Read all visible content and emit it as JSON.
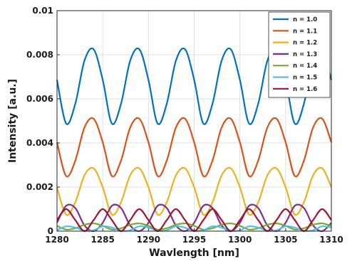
{
  "chart_data": {
    "type": "line",
    "title": "",
    "xlabel": "Wavlength [nm]",
    "ylabel": "Intensity [a.u.]",
    "xlim": [
      1280,
      1310
    ],
    "ylim": [
      0,
      0.01
    ],
    "xticks": [
      "1280",
      "1285",
      "1290",
      "1295",
      "1300",
      "1305",
      "1310"
    ],
    "yticks": [
      "0",
      "0.002",
      "0.004",
      "0.006",
      "0.008",
      "0.01"
    ],
    "grid": true,
    "legend_position": "top-right",
    "x": [
      1280,
      1281,
      1282,
      1283,
      1284,
      1285,
      1286,
      1287,
      1288,
      1289,
      1290,
      1291,
      1292,
      1293,
      1294,
      1295,
      1296,
      1297,
      1298,
      1299,
      1300,
      1301,
      1302,
      1303,
      1304,
      1305,
      1306,
      1307,
      1308,
      1309,
      1310
    ],
    "series": [
      {
        "name": "n = 1.0",
        "color": "#0072BD",
        "values": [
          0.00686,
          0.00488,
          0.00578,
          0.00773,
          0.00825,
          0.00686,
          0.00488,
          0.00578,
          0.00773,
          0.00825,
          0.00686,
          0.00488,
          0.00578,
          0.00773,
          0.00825,
          0.00686,
          0.00488,
          0.00578,
          0.00773,
          0.00825,
          0.00686,
          0.00488,
          0.00578,
          0.00773,
          0.00825,
          0.00686,
          0.00488,
          0.00578,
          0.00773,
          0.00825,
          0.00686
        ]
      },
      {
        "name": "n = 1.1",
        "color": "#D95319",
        "values": [
          0.00403,
          0.0025,
          0.0032,
          0.0047,
          0.0051,
          0.00403,
          0.0025,
          0.0032,
          0.0047,
          0.0051,
          0.00403,
          0.0025,
          0.0032,
          0.0047,
          0.0051,
          0.00403,
          0.0025,
          0.0032,
          0.0047,
          0.0051,
          0.00403,
          0.0025,
          0.0032,
          0.0047,
          0.0051,
          0.00403,
          0.0025,
          0.0032,
          0.0047,
          0.0051,
          0.00403
        ]
      },
      {
        "name": "n = 1.2",
        "color": "#EDB120",
        "values": [
          0.00199,
          0.00075,
          0.00131,
          0.00253,
          0.00285,
          0.00199,
          0.00075,
          0.00131,
          0.00253,
          0.00285,
          0.00199,
          0.00075,
          0.00131,
          0.00253,
          0.00285,
          0.00199,
          0.00075,
          0.00131,
          0.00253,
          0.00285,
          0.00199,
          0.00075,
          0.00131,
          0.00253,
          0.00285,
          0.00199,
          0.00075,
          0.00131,
          0.00253,
          0.00285,
          0.00199
        ]
      },
      {
        "name": "n = 1.3",
        "color": "#7E2F8E",
        "values": [
          0.00038,
          0.00115,
          0.00105,
          0.00026,
          0.0,
          0.00038,
          0.00115,
          0.00105,
          0.00026,
          0.0,
          0.00038,
          0.00115,
          0.00105,
          0.00026,
          0.0,
          0.00038,
          0.00115,
          0.00105,
          0.00026,
          0.0,
          0.00038,
          0.00115,
          0.00105,
          0.00026,
          0.0,
          0.00038,
          0.00115,
          0.00105,
          0.00026,
          0.0,
          0.00038
        ]
      },
      {
        "name": "n = 1.4",
        "color": "#77AC30",
        "values": [
          0.00024,
          7e-05,
          0.00013,
          0.00029,
          0.00035,
          0.00024,
          7e-05,
          0.00013,
          0.00029,
          0.00035,
          0.00024,
          7e-05,
          0.00013,
          0.00029,
          0.00035,
          0.00024,
          7e-05,
          0.00013,
          0.00029,
          0.00035,
          0.00024,
          7e-05,
          0.00013,
          0.00029,
          0.00035,
          0.00024,
          7e-05,
          0.00013,
          0.00029,
          0.00035,
          0.00024
        ]
      },
      {
        "name": "n = 1.5",
        "color": "#4DBEEE",
        "values": [
          4e-05,
          0.00022,
          0.00016,
          2e-05,
          4e-05,
          0.00022,
          0.00016,
          2e-05,
          4e-05,
          0.00022,
          0.00016,
          2e-05,
          4e-05,
          0.00022,
          0.00016,
          2e-05,
          4e-05,
          0.00022,
          0.00016,
          2e-05,
          4e-05,
          0.00022,
          0.00016,
          2e-05,
          4e-05,
          0.00022,
          0.00016,
          2e-05,
          4e-05,
          0.00022,
          0.00016
        ]
      },
      {
        "name": "n = 1.6",
        "color": "#A2142F",
        "values": [
          0.0005,
          0.001,
          0.0005,
          0.0,
          0.0005,
          0.001,
          0.0005,
          0.0,
          0.0005,
          0.001,
          0.0005,
          0.0,
          0.0005,
          0.001,
          0.0005,
          0.0,
          0.0005,
          0.001,
          0.0005,
          0.0,
          0.0005,
          0.001,
          0.0005,
          0.0,
          0.0005,
          0.001,
          0.0005,
          0.0,
          0.0005,
          0.001,
          0.0005
        ]
      }
    ]
  }
}
